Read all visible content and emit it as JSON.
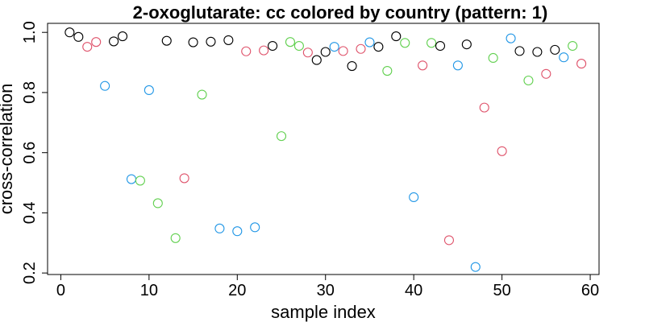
{
  "chart_data": {
    "type": "scatter",
    "title": "2-oxoglutarate: cc colored by country (pattern: 1)",
    "xlabel": "sample index",
    "ylabel": "cross-correlation",
    "xlim": [
      -1.5,
      61
    ],
    "ylim": [
      0.195,
      1.03
    ],
    "xticks": [
      0,
      10,
      20,
      30,
      40,
      50,
      60
    ],
    "yticks": [
      0.2,
      0.4,
      0.6,
      0.8,
      1.0
    ],
    "ytick_labels": [
      "0.2",
      "0.4",
      "0.6",
      "0.8",
      "1.0"
    ],
    "grid": false,
    "legend": "none",
    "marker": "open-circle",
    "colors": {
      "black": "#000000",
      "pink": "#DF536B",
      "green": "#61D04F",
      "blue": "#2297E6"
    },
    "points": [
      {
        "x": 1,
        "y": 1.0,
        "color": "black"
      },
      {
        "x": 2,
        "y": 0.985,
        "color": "black"
      },
      {
        "x": 3,
        "y": 0.952,
        "color": "pink"
      },
      {
        "x": 4,
        "y": 0.968,
        "color": "pink"
      },
      {
        "x": 5,
        "y": 0.822,
        "color": "blue"
      },
      {
        "x": 6,
        "y": 0.97,
        "color": "black"
      },
      {
        "x": 7,
        "y": 0.987,
        "color": "black"
      },
      {
        "x": 8,
        "y": 0.512,
        "color": "blue"
      },
      {
        "x": 9,
        "y": 0.507,
        "color": "green"
      },
      {
        "x": 10,
        "y": 0.808,
        "color": "blue"
      },
      {
        "x": 11,
        "y": 0.432,
        "color": "green"
      },
      {
        "x": 12,
        "y": 0.972,
        "color": "black"
      },
      {
        "x": 13,
        "y": 0.316,
        "color": "green"
      },
      {
        "x": 14,
        "y": 0.515,
        "color": "pink"
      },
      {
        "x": 15,
        "y": 0.967,
        "color": "black"
      },
      {
        "x": 16,
        "y": 0.793,
        "color": "green"
      },
      {
        "x": 17,
        "y": 0.969,
        "color": "black"
      },
      {
        "x": 18,
        "y": 0.348,
        "color": "blue"
      },
      {
        "x": 19,
        "y": 0.974,
        "color": "black"
      },
      {
        "x": 20,
        "y": 0.339,
        "color": "blue"
      },
      {
        "x": 21,
        "y": 0.937,
        "color": "pink"
      },
      {
        "x": 22,
        "y": 0.352,
        "color": "blue"
      },
      {
        "x": 23,
        "y": 0.94,
        "color": "pink"
      },
      {
        "x": 24,
        "y": 0.955,
        "color": "black"
      },
      {
        "x": 25,
        "y": 0.655,
        "color": "green"
      },
      {
        "x": 26,
        "y": 0.968,
        "color": "green"
      },
      {
        "x": 27,
        "y": 0.955,
        "color": "green"
      },
      {
        "x": 28,
        "y": 0.933,
        "color": "pink"
      },
      {
        "x": 29,
        "y": 0.908,
        "color": "black"
      },
      {
        "x": 30,
        "y": 0.935,
        "color": "black"
      },
      {
        "x": 31,
        "y": 0.952,
        "color": "blue"
      },
      {
        "x": 32,
        "y": 0.938,
        "color": "pink"
      },
      {
        "x": 33,
        "y": 0.888,
        "color": "black"
      },
      {
        "x": 34,
        "y": 0.945,
        "color": "pink"
      },
      {
        "x": 35,
        "y": 0.967,
        "color": "blue"
      },
      {
        "x": 36,
        "y": 0.952,
        "color": "black"
      },
      {
        "x": 37,
        "y": 0.872,
        "color": "green"
      },
      {
        "x": 38,
        "y": 0.987,
        "color": "black"
      },
      {
        "x": 39,
        "y": 0.965,
        "color": "green"
      },
      {
        "x": 40,
        "y": 0.452,
        "color": "blue"
      },
      {
        "x": 41,
        "y": 0.89,
        "color": "pink"
      },
      {
        "x": 42,
        "y": 0.965,
        "color": "green"
      },
      {
        "x": 43,
        "y": 0.955,
        "color": "black"
      },
      {
        "x": 44,
        "y": 0.309,
        "color": "pink"
      },
      {
        "x": 45,
        "y": 0.89,
        "color": "blue"
      },
      {
        "x": 46,
        "y": 0.96,
        "color": "black"
      },
      {
        "x": 47,
        "y": 0.22,
        "color": "blue"
      },
      {
        "x": 48,
        "y": 0.75,
        "color": "pink"
      },
      {
        "x": 49,
        "y": 0.915,
        "color": "green"
      },
      {
        "x": 50,
        "y": 0.605,
        "color": "pink"
      },
      {
        "x": 51,
        "y": 0.98,
        "color": "blue"
      },
      {
        "x": 52,
        "y": 0.938,
        "color": "black"
      },
      {
        "x": 53,
        "y": 0.84,
        "color": "green"
      },
      {
        "x": 54,
        "y": 0.935,
        "color": "black"
      },
      {
        "x": 55,
        "y": 0.862,
        "color": "pink"
      },
      {
        "x": 56,
        "y": 0.942,
        "color": "black"
      },
      {
        "x": 57,
        "y": 0.917,
        "color": "blue"
      },
      {
        "x": 58,
        "y": 0.955,
        "color": "green"
      },
      {
        "x": 59,
        "y": 0.896,
        "color": "pink"
      }
    ]
  }
}
